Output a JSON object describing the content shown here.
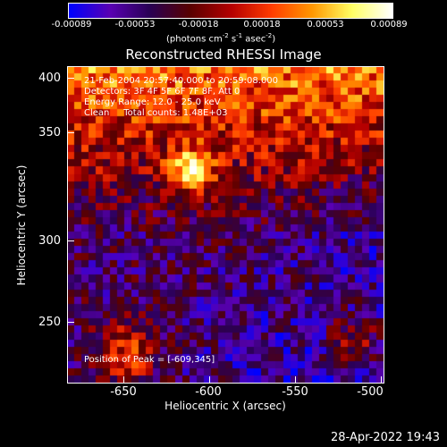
{
  "colorbar": {
    "ticks": [
      "-0.00089",
      "-0.00053",
      "-0.00018",
      "0.00018",
      "0.00053",
      "0.00089"
    ],
    "units": "(photons cm",
    "units_exp1": "-2",
    "units_mid": " s",
    "units_exp2": "-1",
    "units_mid2": " asec",
    "units_exp3": "-2",
    "units_end": ")"
  },
  "title": "Reconstructed RHESSI Image",
  "info": {
    "line1": "21-Feb-2004 20:57:40.000 to 20:59:08.000",
    "line2": "Detectors: 3F 4F 5F 6F 7F 8F, Att 0",
    "line3": "Energy Range: 12.0 - 25.0 keV",
    "line4": "Clean     Total counts: 1.48E+03",
    "peak": "Position of Peak = [-609,345]"
  },
  "axes": {
    "xlabel": "Heliocentric X (arcsec)",
    "ylabel": "Heliocentric Y (arcsec)",
    "xticks": [
      "-650",
      "-600",
      "-550",
      "-500"
    ],
    "yticks": [
      "400",
      "350",
      "300",
      "250"
    ]
  },
  "timestamp": "28-Apr-2022 19:43",
  "colors": {
    "cmap": [
      "#0000ff",
      "#5a00b4",
      "#2a0055",
      "#5a0000",
      "#b40000",
      "#ff3c00",
      "#ff9600",
      "#ffff64",
      "#ffffff"
    ]
  }
}
